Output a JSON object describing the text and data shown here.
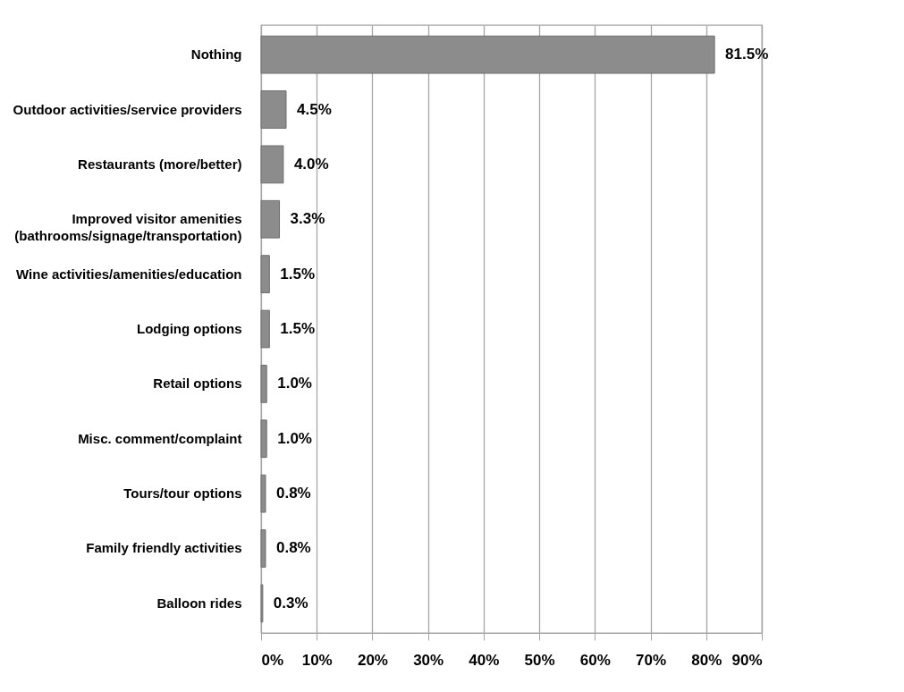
{
  "chart_data": {
    "type": "bar",
    "orientation": "horizontal",
    "categories": [
      "Nothing",
      "Outdoor activities/service providers",
      "Restaurants (more/better)",
      "Improved visitor amenities\n(bathrooms/signage/transportation)",
      "Wine activities/amenities/education",
      "Lodging options",
      "Retail options",
      "Misc. comment/complaint",
      "Tours/tour options",
      "Family friendly activities",
      "Balloon rides"
    ],
    "values": [
      81.5,
      4.5,
      4.0,
      3.3,
      1.5,
      1.5,
      1.0,
      1.0,
      0.8,
      0.8,
      0.3
    ],
    "value_labels": [
      "81.5%",
      "4.5%",
      "4.0%",
      "3.3%",
      "1.5%",
      "1.5%",
      "1.0%",
      "1.0%",
      "0.8%",
      "0.8%",
      "0.3%"
    ],
    "color": "#8c8c8c",
    "xlim": [
      0,
      90
    ],
    "xticks": [
      {
        "value": 0,
        "label": "0%"
      },
      {
        "value": 10,
        "label": "10%"
      },
      {
        "value": 20,
        "label": "20%"
      },
      {
        "value": 30,
        "label": "30%"
      },
      {
        "value": 40,
        "label": "40%"
      },
      {
        "value": 50,
        "label": "50%"
      },
      {
        "value": 60,
        "label": "60%"
      },
      {
        "value": 70,
        "label": "70%"
      },
      {
        "value": 80,
        "label": "80%"
      },
      {
        "value": 90,
        "label": "90%"
      }
    ],
    "grid": "x"
  }
}
